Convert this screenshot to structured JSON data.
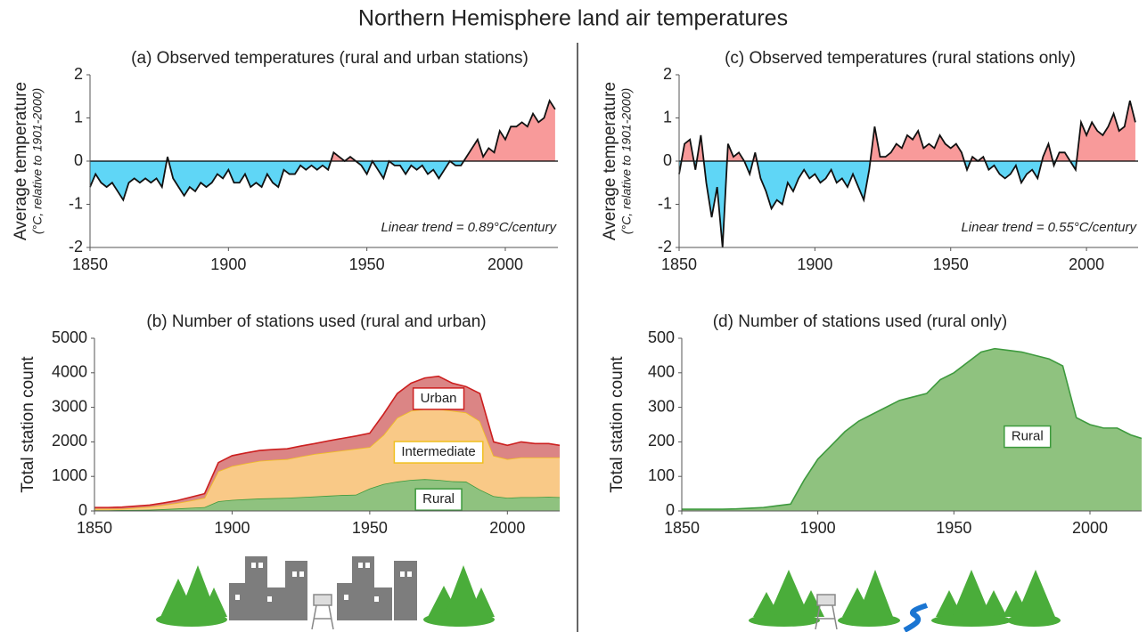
{
  "title": "Northern Hemisphere land air temperatures",
  "chart_data": [
    {
      "type": "line",
      "title": "(a) Observed temperatures (rural and urban stations)",
      "ylabel": "Average temperature",
      "ylabel_sub": "(°C, relative to 1901-2000)",
      "annotation": "Linear trend = 0.89°C/century",
      "x": [
        1850,
        1852,
        1854,
        1856,
        1858,
        1860,
        1862,
        1864,
        1866,
        1868,
        1870,
        1872,
        1874,
        1876,
        1878,
        1880,
        1882,
        1884,
        1886,
        1888,
        1890,
        1892,
        1894,
        1896,
        1898,
        1900,
        1902,
        1904,
        1906,
        1908,
        1910,
        1912,
        1914,
        1916,
        1918,
        1920,
        1922,
        1924,
        1926,
        1928,
        1930,
        1932,
        1934,
        1936,
        1938,
        1940,
        1942,
        1944,
        1946,
        1948,
        1950,
        1952,
        1954,
        1956,
        1958,
        1960,
        1962,
        1964,
        1966,
        1968,
        1970,
        1972,
        1974,
        1976,
        1978,
        1980,
        1982,
        1984,
        1986,
        1988,
        1990,
        1992,
        1994,
        1996,
        1998,
        2000,
        2002,
        2004,
        2006,
        2008,
        2010,
        2012,
        2014,
        2016,
        2018
      ],
      "values": [
        -0.6,
        -0.3,
        -0.5,
        -0.6,
        -0.5,
        -0.7,
        -0.9,
        -0.5,
        -0.4,
        -0.5,
        -0.4,
        -0.5,
        -0.4,
        -0.6,
        0.1,
        -0.4,
        -0.6,
        -0.8,
        -0.6,
        -0.7,
        -0.5,
        -0.6,
        -0.5,
        -0.3,
        -0.4,
        -0.2,
        -0.5,
        -0.5,
        -0.3,
        -0.6,
        -0.5,
        -0.6,
        -0.3,
        -0.5,
        -0.6,
        -0.2,
        -0.3,
        -0.3,
        -0.1,
        -0.2,
        -0.1,
        -0.2,
        -0.1,
        -0.2,
        0.2,
        0.1,
        0.0,
        0.1,
        0.0,
        -0.1,
        -0.3,
        0.0,
        -0.2,
        -0.4,
        0.0,
        -0.1,
        -0.1,
        -0.3,
        -0.1,
        -0.2,
        -0.1,
        -0.3,
        -0.2,
        -0.4,
        -0.2,
        0.0,
        -0.1,
        -0.1,
        0.1,
        0.3,
        0.5,
        0.1,
        0.3,
        0.2,
        0.7,
        0.5,
        0.8,
        0.8,
        0.9,
        0.8,
        1.1,
        0.9,
        1.0,
        1.4,
        1.2
      ],
      "color": "#111111",
      "fill_positive": "#f89a9a",
      "fill_negative": "#5fd6f6",
      "xlim": [
        1850,
        2019
      ],
      "xticks": [
        1850,
        1900,
        1950,
        2000
      ],
      "ylim": [
        -2,
        2
      ],
      "yticks": [
        -2,
        -1,
        0,
        1,
        2
      ]
    },
    {
      "type": "area",
      "stacked": true,
      "title": "(b) Number of stations used (rural and urban)",
      "ylabel": "Total station count",
      "x": [
        1850,
        1855,
        1860,
        1865,
        1870,
        1875,
        1880,
        1885,
        1890,
        1895,
        1900,
        1905,
        1910,
        1915,
        1920,
        1925,
        1930,
        1935,
        1940,
        1945,
        1950,
        1955,
        1960,
        1965,
        1970,
        1975,
        1980,
        1985,
        1990,
        1995,
        2000,
        2005,
        2010,
        2015,
        2019
      ],
      "series": [
        {
          "name": "Rural",
          "color": "#8fc27f",
          "line_color": "#3e9a3e",
          "values": [
            20,
            20,
            25,
            30,
            35,
            50,
            70,
            90,
            110,
            280,
            320,
            340,
            360,
            370,
            380,
            400,
            420,
            440,
            460,
            470,
            650,
            780,
            850,
            900,
            920,
            900,
            860,
            850,
            620,
            430,
            380,
            400,
            400,
            410,
            400
          ]
        },
        {
          "name": "Intermediate",
          "color": "#f9c987",
          "line_color": "#f0c020",
          "values": [
            40,
            40,
            35,
            60,
            85,
            120,
            160,
            210,
            270,
            870,
            980,
            1040,
            1090,
            1110,
            1120,
            1180,
            1230,
            1260,
            1290,
            1330,
            1200,
            1420,
            1850,
            2000,
            2030,
            2050,
            2040,
            2000,
            1980,
            1170,
            1120,
            1150,
            1150,
            1140,
            1150
          ]
        },
        {
          "name": "Urban",
          "color": "#db8585",
          "line_color": "#cc1f1f",
          "values": [
            40,
            40,
            50,
            50,
            50,
            60,
            70,
            100,
            120,
            250,
            300,
            300,
            300,
            300,
            300,
            300,
            300,
            330,
            350,
            370,
            400,
            600,
            700,
            800,
            900,
            950,
            800,
            750,
            800,
            400,
            400,
            450,
            400,
            400,
            350
          ]
        }
      ],
      "xlim": [
        1850,
        2019
      ],
      "xticks": [
        1850,
        1900,
        1950,
        2000
      ],
      "ylim": [
        0,
        5000
      ],
      "yticks": [
        0,
        1000,
        2000,
        3000,
        4000,
        5000
      ]
    },
    {
      "type": "line",
      "title": "(c) Observed temperatures (rural stations only)",
      "ylabel": "Average temperature",
      "ylabel_sub": "(°C, relative to 1901-2000)",
      "annotation": "Linear trend = 0.55°C/century",
      "x": [
        1850,
        1852,
        1854,
        1856,
        1858,
        1860,
        1862,
        1864,
        1866,
        1868,
        1870,
        1872,
        1874,
        1876,
        1878,
        1880,
        1882,
        1884,
        1886,
        1888,
        1890,
        1892,
        1894,
        1896,
        1898,
        1900,
        1902,
        1904,
        1906,
        1908,
        1910,
        1912,
        1914,
        1916,
        1918,
        1920,
        1922,
        1924,
        1926,
        1928,
        1930,
        1932,
        1934,
        1936,
        1938,
        1940,
        1942,
        1944,
        1946,
        1948,
        1950,
        1952,
        1954,
        1956,
        1958,
        1960,
        1962,
        1964,
        1966,
        1968,
        1970,
        1972,
        1974,
        1976,
        1978,
        1980,
        1982,
        1984,
        1986,
        1988,
        1990,
        1992,
        1994,
        1996,
        1998,
        2000,
        2002,
        2004,
        2006,
        2008,
        2010,
        2012,
        2014,
        2016,
        2018
      ],
      "values": [
        -0.3,
        0.4,
        0.5,
        -0.2,
        0.6,
        -0.5,
        -1.3,
        -0.6,
        -2.0,
        0.4,
        0.1,
        0.2,
        0.0,
        -0.3,
        0.2,
        -0.4,
        -0.7,
        -1.1,
        -0.9,
        -1.0,
        -0.5,
        -0.7,
        -0.4,
        -0.2,
        -0.4,
        -0.3,
        -0.5,
        -0.4,
        -0.2,
        -0.5,
        -0.4,
        -0.6,
        -0.3,
        -0.6,
        -0.9,
        -0.2,
        0.8,
        0.1,
        0.1,
        0.2,
        0.4,
        0.3,
        0.6,
        0.5,
        0.7,
        0.3,
        0.4,
        0.3,
        0.6,
        0.4,
        0.3,
        0.4,
        0.2,
        -0.2,
        0.1,
        0.0,
        0.1,
        -0.2,
        -0.1,
        -0.3,
        -0.4,
        -0.3,
        -0.1,
        -0.5,
        -0.3,
        -0.2,
        -0.4,
        0.1,
        0.4,
        -0.1,
        0.2,
        0.2,
        0.0,
        -0.2,
        0.9,
        0.6,
        0.9,
        0.7,
        0.6,
        0.8,
        1.1,
        0.7,
        0.8,
        1.4,
        0.9
      ],
      "color": "#111111",
      "fill_positive": "#f89a9a",
      "fill_negative": "#5fd6f6",
      "xlim": [
        1850,
        2019
      ],
      "xticks": [
        1850,
        1900,
        1950,
        2000
      ],
      "ylim": [
        -2,
        2
      ],
      "yticks": [
        -2,
        -1,
        0,
        1,
        2
      ]
    },
    {
      "type": "area",
      "stacked": true,
      "title": "(d) Number of stations used (rural only)",
      "ylabel": "Total station count",
      "x": [
        1850,
        1855,
        1860,
        1865,
        1870,
        1875,
        1880,
        1885,
        1890,
        1895,
        1900,
        1905,
        1910,
        1915,
        1920,
        1925,
        1930,
        1935,
        1940,
        1945,
        1950,
        1955,
        1960,
        1965,
        1970,
        1975,
        1980,
        1985,
        1990,
        1995,
        2000,
        2005,
        2010,
        2015,
        2019
      ],
      "series": [
        {
          "name": "Rural",
          "color": "#8fc27f",
          "line_color": "#3e9a3e",
          "values": [
            5,
            5,
            5,
            5,
            6,
            8,
            10,
            15,
            20,
            90,
            150,
            190,
            230,
            260,
            280,
            300,
            320,
            330,
            340,
            380,
            400,
            430,
            460,
            470,
            465,
            460,
            450,
            440,
            420,
            270,
            250,
            240,
            240,
            220,
            210
          ]
        }
      ],
      "xlim": [
        1850,
        2019
      ],
      "xticks": [
        1850,
        1900,
        1950,
        2000
      ],
      "ylim": [
        0,
        500
      ],
      "yticks": [
        0,
        100,
        200,
        300,
        400,
        500
      ]
    }
  ]
}
